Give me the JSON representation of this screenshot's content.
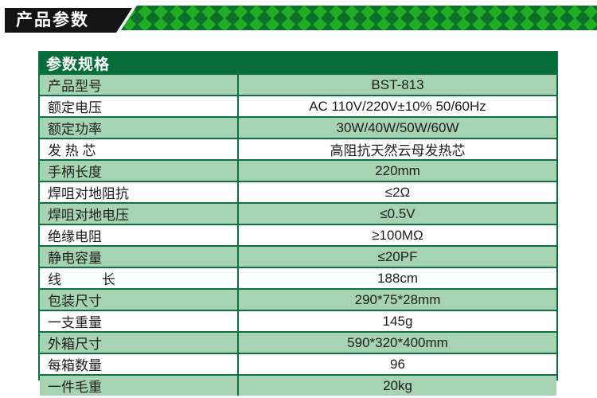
{
  "banner": {
    "title": "产品参数"
  },
  "table": {
    "header": "参数规格",
    "rows": [
      {
        "label": "产品型号",
        "value": "BST-813"
      },
      {
        "label": "额定电压",
        "value": "AC 110V/220V±10% 50/60Hz"
      },
      {
        "label": "额定功率",
        "value": "30W/40W/50W/60W"
      },
      {
        "label": "发 热 芯",
        "value": "高阻抗天然云母发热芯"
      },
      {
        "label": "手柄长度",
        "value": "220mm"
      },
      {
        "label": "焊咀对地阻抗",
        "value": "≤2Ω"
      },
      {
        "label": "焊咀对地电压",
        "value": "≤0.5V"
      },
      {
        "label": "绝缘电阻",
        "value": "≥100MΩ"
      },
      {
        "label": "静电容量",
        "value": "≤20PF"
      },
      {
        "label": "线　　　长",
        "value": "188cm"
      },
      {
        "label": "包装尺寸",
        "value": "290*75*28mm"
      },
      {
        "label": "一支重量",
        "value": "145g"
      },
      {
        "label": "外箱尺寸",
        "value": "590*320*400mm"
      },
      {
        "label": "每箱数量",
        "value": "96"
      },
      {
        "label": "一件毛重",
        "value": "20kg"
      }
    ]
  },
  "colors": {
    "banner_black": "#141414",
    "strip_bright_green": "#1fae22",
    "strip_dark_green": "#0c6f2b",
    "table_header_green": "#076d3a",
    "table_border_green": "#0d7040",
    "row_light_green": "#a6d3b2",
    "text_dark": "#1d1d1d"
  }
}
